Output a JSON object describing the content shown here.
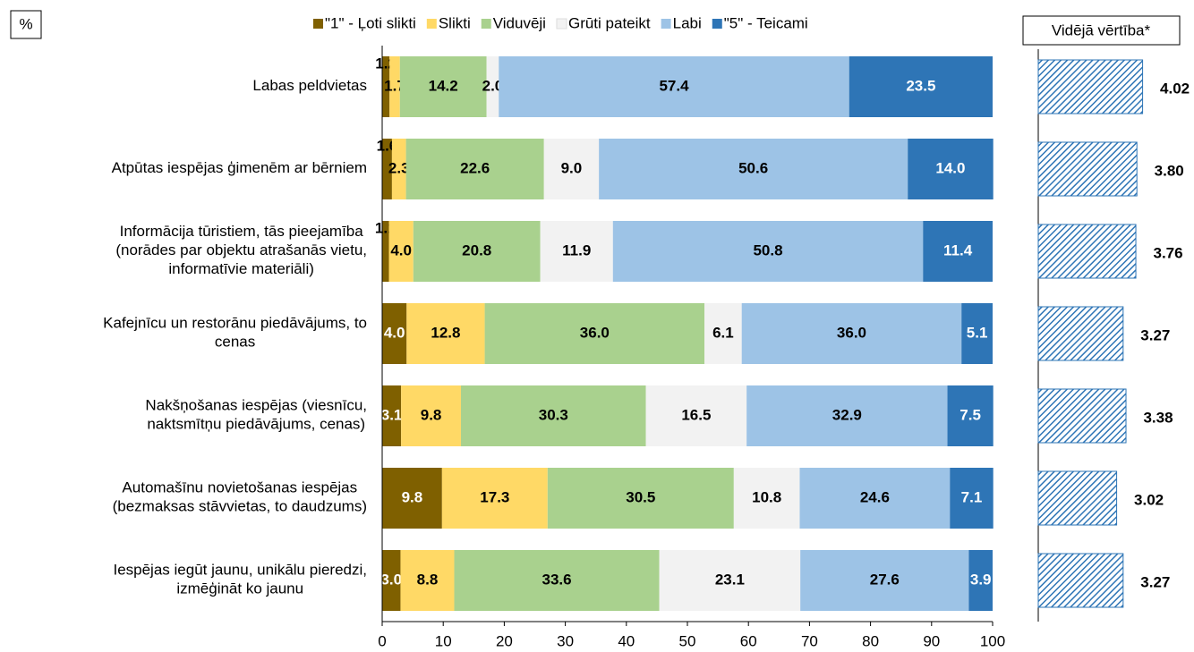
{
  "chart_data": {
    "type": "stacked_bar_horizontal",
    "unit_label": "%",
    "categories": [
      "Labas peldvietas",
      "Atpūtas iespējas ģimenēm ar bērniem",
      "Informācija tūristiem, tās pieejamība\n(norādes par objektu atrašanās vietu,\ninformatīvie materiāli)",
      "Kafejnīcu un restorānu piedāvājums, to\ncenas",
      "Nakšņošanas iespējas (viesnīcu,\nnaktsmītņu piedāvājums, cenas)",
      "Automašīnu novietošanas iespējas\n(bezmaksas stāvvietas, to daudzums)",
      "Iespējas iegūt jaunu, unikālu pieredzi,\nizmēģināt ko jaunu"
    ],
    "series": [
      {
        "name": "\"1\" - Ļoti slikti",
        "color": "#7f6000",
        "values": [
          1.2,
          1.6,
          1.1,
          4.0,
          3.1,
          9.8,
          3.0
        ],
        "value_labels": [
          "1.2",
          "1.6",
          "1.1",
          "4.0",
          "3.1",
          "9.8",
          "3.0"
        ]
      },
      {
        "name": "Slikti",
        "color": "#ffd966",
        "values": [
          1.7,
          2.3,
          4.0,
          12.8,
          9.8,
          17.3,
          8.8
        ],
        "value_labels": [
          "1.7",
          "2.3",
          "4.0",
          "12.8",
          "9.8",
          "17.3",
          "8.8"
        ]
      },
      {
        "name": "Viduvēji",
        "color": "#a9d18e",
        "values": [
          14.2,
          22.6,
          20.8,
          36.0,
          30.3,
          30.5,
          33.6
        ],
        "value_labels": [
          "14.2",
          "22.6",
          "20.8",
          "36.0",
          "30.3",
          "30.5",
          "33.6"
        ]
      },
      {
        "name": "Grūti pateikt",
        "color": "#f2f2f2",
        "values": [
          2.0,
          9.0,
          11.9,
          6.1,
          16.5,
          10.8,
          23.1
        ],
        "value_labels": [
          "2.0",
          "9.0",
          "11.9",
          "6.1",
          "16.5",
          "10.8",
          "23.1"
        ]
      },
      {
        "name": "Labi",
        "color": "#9dc3e6",
        "values": [
          57.4,
          50.6,
          50.8,
          36.0,
          32.9,
          24.6,
          27.6
        ],
        "value_labels": [
          "57.4",
          "50.6",
          "50.8",
          "36.0",
          "32.9",
          "24.6",
          "27.6"
        ]
      },
      {
        "name": "\"5\" - Teicami",
        "color": "#2e75b6",
        "values": [
          23.5,
          14.0,
          11.4,
          5.1,
          7.5,
          7.1,
          3.9
        ],
        "value_labels": [
          "23.5",
          "14.0",
          "11.4",
          "5.1",
          "7.5",
          "7.1",
          "3.9"
        ]
      }
    ],
    "xlim": [
      0,
      100
    ],
    "xticks": [
      0,
      10,
      20,
      30,
      40,
      50,
      60,
      70,
      80,
      90,
      100
    ],
    "averages": {
      "title": "Vidējā vērtība*",
      "color": "#2e75b6",
      "values": [
        4.02,
        3.8,
        3.76,
        3.27,
        3.38,
        3.02,
        3.27
      ],
      "value_labels": [
        "4.02",
        "3.80",
        "3.76",
        "3.27",
        "3.38",
        "3.02",
        "3.27"
      ]
    }
  }
}
